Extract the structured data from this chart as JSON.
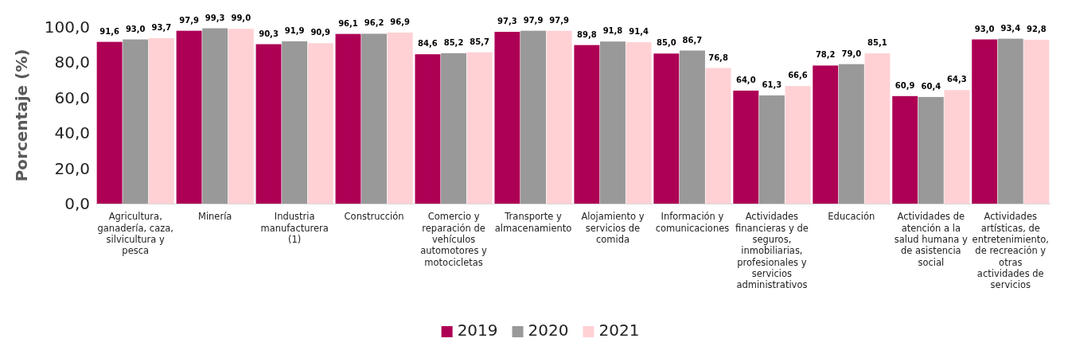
{
  "chart_data": {
    "type": "bar",
    "ylabel": "Porcentaje (%)",
    "categories": [
      "Agricultura, ganadería, caza, silvicultura y pesca",
      "Minería",
      "Industria manufacturera (1)",
      "Construcción",
      "Comercio y reparación de vehículos automotores y motocicletas",
      "Transporte y almacenamiento",
      "Alojamiento y servicios de comida",
      "Información y comunicaciones",
      "Actividades financieras y de seguros, inmobiliarias, profesionales y servicios administrativos",
      "Educación",
      "Actividades de atención a la salud humana y de asistencia social",
      "Actividades artísticas, de entretenimiento, de recreación y otras actividades de servicios"
    ],
    "series": [
      {
        "name": "2019",
        "color": "#ad0055",
        "values": [
          91.6,
          97.9,
          90.3,
          96.1,
          84.6,
          97.3,
          89.8,
          85.0,
          64.0,
          78.2,
          60.9,
          93.0
        ],
        "value_labels": [
          "91,6",
          "97,9",
          "90,3",
          "96,1",
          "84,6",
          "97,3",
          "89,8",
          "85,0",
          "64,0",
          "78,2",
          "60,9",
          "93,0"
        ]
      },
      {
        "name": "2020",
        "color": "#999999",
        "values": [
          93.0,
          99.3,
          91.9,
          96.2,
          85.2,
          97.9,
          91.8,
          86.7,
          61.3,
          79.0,
          60.4,
          93.4
        ],
        "value_labels": [
          "93,0",
          "99,3",
          "91,9",
          "96,2",
          "85,2",
          "97,9",
          "91,8",
          "86,7",
          "61,3",
          "79,0",
          "60,4",
          "93,4"
        ]
      },
      {
        "name": "2021",
        "color": "#ffd1d5",
        "values": [
          93.7,
          99.0,
          90.9,
          96.9,
          85.7,
          97.9,
          91.4,
          76.8,
          66.6,
          85.1,
          64.3,
          92.8
        ],
        "value_labels": [
          "93,7",
          "99,0",
          "90,9",
          "96,9",
          "85,7",
          "97,9",
          "91,4",
          "76,8",
          "66,6",
          "85,1",
          "64,3",
          "92,8"
        ]
      }
    ],
    "ylim": [
      0,
      100
    ],
    "yticks": [
      {
        "value": 0,
        "label": "0,0"
      },
      {
        "value": 20,
        "label": "20,0"
      },
      {
        "value": 40,
        "label": "40,0"
      },
      {
        "value": 60,
        "label": "60,0"
      },
      {
        "value": 80,
        "label": "80,0"
      },
      {
        "value": 100,
        "label": "100,0"
      }
    ],
    "grid": false,
    "legend": "bottom"
  }
}
